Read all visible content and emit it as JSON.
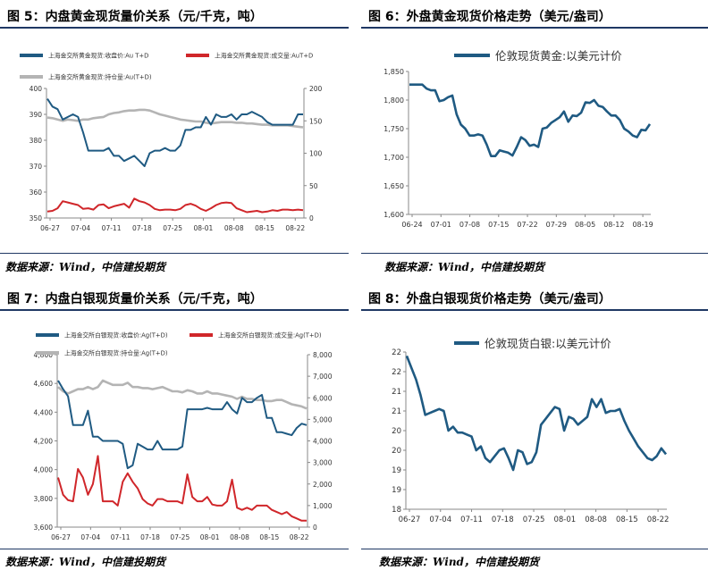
{
  "colors": {
    "blue": "#1f5a82",
    "red": "#d0262a",
    "gray": "#b4b4b4",
    "rule": "#1f3864"
  },
  "panels": [
    {
      "title": "图 5：内盘黄金现货量价关系（元/千克，吨）",
      "source": "数据来源：Wind，中信建投期货"
    },
    {
      "title": "图 6：外盘黄金现货价格走势（美元/盎司）",
      "source": "数据来源：Wind，中信建投期货"
    },
    {
      "title": "图 7：内盘白银现货量价关系（元/千克，吨）",
      "source": "数据来源：Wind，中信建投期货"
    },
    {
      "title": "图 8：外盘白银现货价格走势（美元/盎司）",
      "source": "数据来源：Wind，中信建投期货"
    }
  ],
  "chart_data": [
    {
      "type": "line",
      "legend_placement": "top",
      "x_ticks": [
        "06-27",
        "07-04",
        "07-11",
        "07-18",
        "07-25",
        "08-01",
        "08-08",
        "08-15",
        "08-22"
      ],
      "ylim_left": [
        350,
        400
      ],
      "yticks_left": [
        "350",
        "360",
        "370",
        "380",
        "390",
        "400"
      ],
      "ylim_right": [
        0,
        200
      ],
      "yticks_right": [
        "0",
        "50",
        "100",
        "150",
        "200"
      ],
      "series": [
        {
          "name": "上海金交所黄金现货:收盘价:Au T+D",
          "axis": "left",
          "color": "#1f5a82",
          "values": [
            396,
            393,
            392,
            388,
            389,
            390,
            389,
            383,
            376,
            376,
            376,
            376,
            377,
            374,
            374,
            372,
            373,
            374,
            372,
            370,
            375,
            376,
            376,
            377,
            376,
            376,
            378,
            384,
            384,
            385,
            385,
            389,
            386,
            390,
            389,
            389,
            390,
            388,
            390,
            390,
            391,
            390,
            389,
            387,
            386,
            386,
            386,
            386,
            386,
            390,
            390
          ]
        },
        {
          "name": "上海金交所黄金现货:成交量:AuT+D",
          "axis": "right",
          "color": "#d0262a",
          "values": [
            10,
            11,
            15,
            26,
            24,
            22,
            20,
            14,
            15,
            13,
            20,
            21,
            15,
            18,
            20,
            22,
            16,
            30,
            26,
            24,
            20,
            14,
            12,
            13,
            13,
            12,
            14,
            20,
            22,
            19,
            14,
            11,
            15,
            20,
            23,
            24,
            23,
            15,
            12,
            9,
            10,
            11,
            9,
            10,
            12,
            11,
            13,
            13,
            12,
            13,
            12
          ]
        },
        {
          "name": "上海金交所黄金现货:持仓量:Au(T+D)",
          "axis": "right",
          "color": "#b4b4b4",
          "values": [
            155,
            154,
            152,
            150,
            152,
            151,
            150,
            152,
            152,
            154,
            155,
            156,
            160,
            162,
            163,
            165,
            166,
            166,
            167,
            167,
            166,
            163,
            160,
            158,
            156,
            154,
            152,
            151,
            150,
            149,
            149,
            147,
            146,
            147,
            148,
            148,
            148,
            147,
            147,
            146,
            146,
            145,
            144,
            144,
            143,
            143,
            143,
            143,
            142,
            141,
            140
          ]
        }
      ]
    },
    {
      "type": "line",
      "legend_placement": "top",
      "x_ticks": [
        "06-24",
        "07-01",
        "07-08",
        "07-15",
        "07-22",
        "07-29",
        "08-05",
        "08-12",
        "08-19"
      ],
      "ylim": [
        1600,
        1850
      ],
      "yticks": [
        "1,600",
        "1,650",
        "1,700",
        "1,750",
        "1,800",
        "1,850"
      ],
      "series": [
        {
          "name": "伦敦现货黄金:以美元计价",
          "color": "#1f5a82",
          "values": [
            1827,
            1827,
            1827,
            1827,
            1820,
            1817,
            1817,
            1798,
            1800,
            1805,
            1808,
            1775,
            1757,
            1750,
            1738,
            1738,
            1740,
            1738,
            1722,
            1702,
            1702,
            1712,
            1710,
            1708,
            1703,
            1718,
            1735,
            1730,
            1720,
            1722,
            1718,
            1750,
            1752,
            1760,
            1765,
            1770,
            1780,
            1762,
            1773,
            1772,
            1778,
            1796,
            1795,
            1800,
            1790,
            1788,
            1780,
            1773,
            1773,
            1765,
            1750,
            1745,
            1738,
            1735,
            1748,
            1747,
            1758
          ]
        }
      ]
    },
    {
      "type": "line",
      "legend_placement": "top",
      "x_ticks": [
        "06-27",
        "07-04",
        "07-11",
        "07-18",
        "07-25",
        "08-01",
        "08-08",
        "08-15",
        "08-22"
      ],
      "ylim_left": [
        3600,
        4800
      ],
      "yticks_left": [
        "3,600",
        "3,800",
        "4,000",
        "4,200",
        "4,400",
        "4,600",
        "4,800"
      ],
      "ylim_right": [
        0,
        8000
      ],
      "yticks_right": [
        "0",
        "1,000",
        "2,000",
        "3,000",
        "4,000",
        "5,000",
        "6,000",
        "7,000",
        "8,000"
      ],
      "series": [
        {
          "name": "上海金交所白银现货:收盘价:Ag(T+D)",
          "axis": "left",
          "color": "#1f5a82",
          "values": [
            4620,
            4560,
            4510,
            4310,
            4310,
            4310,
            4410,
            4230,
            4230,
            4200,
            4200,
            4200,
            4200,
            4180,
            4010,
            4030,
            4180,
            4160,
            4140,
            4140,
            4200,
            4140,
            4140,
            4140,
            4140,
            4160,
            4420,
            4420,
            4420,
            4420,
            4430,
            4420,
            4420,
            4420,
            4470,
            4420,
            4390,
            4500,
            4470,
            4470,
            4500,
            4520,
            4360,
            4360,
            4260,
            4260,
            4250,
            4240,
            4290,
            4320,
            4310
          ]
        },
        {
          "name": "上海金交所白银现货:成交量:Ag(T+D)",
          "axis": "right",
          "color": "#d0262a",
          "values": [
            2300,
            1500,
            1250,
            1200,
            2700,
            2300,
            1500,
            2000,
            3300,
            1200,
            1200,
            1200,
            1000,
            2100,
            2500,
            2100,
            1800,
            1300,
            1100,
            1000,
            1300,
            1300,
            1200,
            1200,
            1200,
            1100,
            2450,
            1400,
            1200,
            1200,
            1400,
            1050,
            1000,
            1000,
            1200,
            2200,
            900,
            800,
            900,
            800,
            1000,
            1000,
            1000,
            800,
            700,
            600,
            700,
            500,
            400,
            300,
            300
          ]
        },
        {
          "name": "上海金交所白银现货:持仓量:Ag(T+D)",
          "axis": "right",
          "color": "#b4b4b4",
          "values": [
            6500,
            6300,
            6200,
            6300,
            6400,
            6400,
            6500,
            6400,
            6500,
            6800,
            6700,
            6600,
            6600,
            6600,
            6700,
            6500,
            6500,
            6450,
            6450,
            6400,
            6450,
            6500,
            6400,
            6300,
            6300,
            6250,
            6350,
            6300,
            6200,
            6200,
            6300,
            6200,
            6200,
            6150,
            6100,
            6050,
            5950,
            6050,
            5950,
            5950,
            5900,
            5900,
            5850,
            5850,
            5900,
            5900,
            5800,
            5700,
            5650,
            5600,
            5500
          ]
        }
      ]
    },
    {
      "type": "line",
      "legend_placement": "top",
      "x_ticks": [
        "06-27",
        "07-04",
        "07-11",
        "07-18",
        "07-25",
        "08-01",
        "08-08",
        "08-15",
        "08-22"
      ],
      "ylim": [
        18,
        22
      ],
      "yticks": [
        "18",
        "19",
        "19",
        "20",
        "20",
        "21",
        "21",
        "22",
        "22"
      ],
      "series": [
        {
          "name": "伦敦现货白银:以美元计价",
          "color": "#1f5a82",
          "values": [
            21.9,
            21.6,
            21.3,
            20.9,
            20.4,
            20.45,
            20.5,
            20.55,
            20.5,
            20.0,
            20.1,
            19.95,
            19.95,
            19.9,
            19.85,
            19.5,
            19.6,
            19.3,
            19.2,
            19.35,
            19.5,
            19.55,
            19.3,
            19.0,
            19.5,
            19.45,
            19.15,
            19.2,
            19.45,
            20.15,
            20.3,
            20.45,
            20.6,
            20.55,
            20.0,
            20.35,
            20.3,
            20.15,
            20.25,
            20.35,
            20.8,
            20.6,
            20.8,
            20.45,
            20.5,
            20.5,
            20.55,
            20.25,
            20.0,
            19.8,
            19.6,
            19.45,
            19.3,
            19.25,
            19.35,
            19.55,
            19.4
          ]
        }
      ]
    }
  ]
}
